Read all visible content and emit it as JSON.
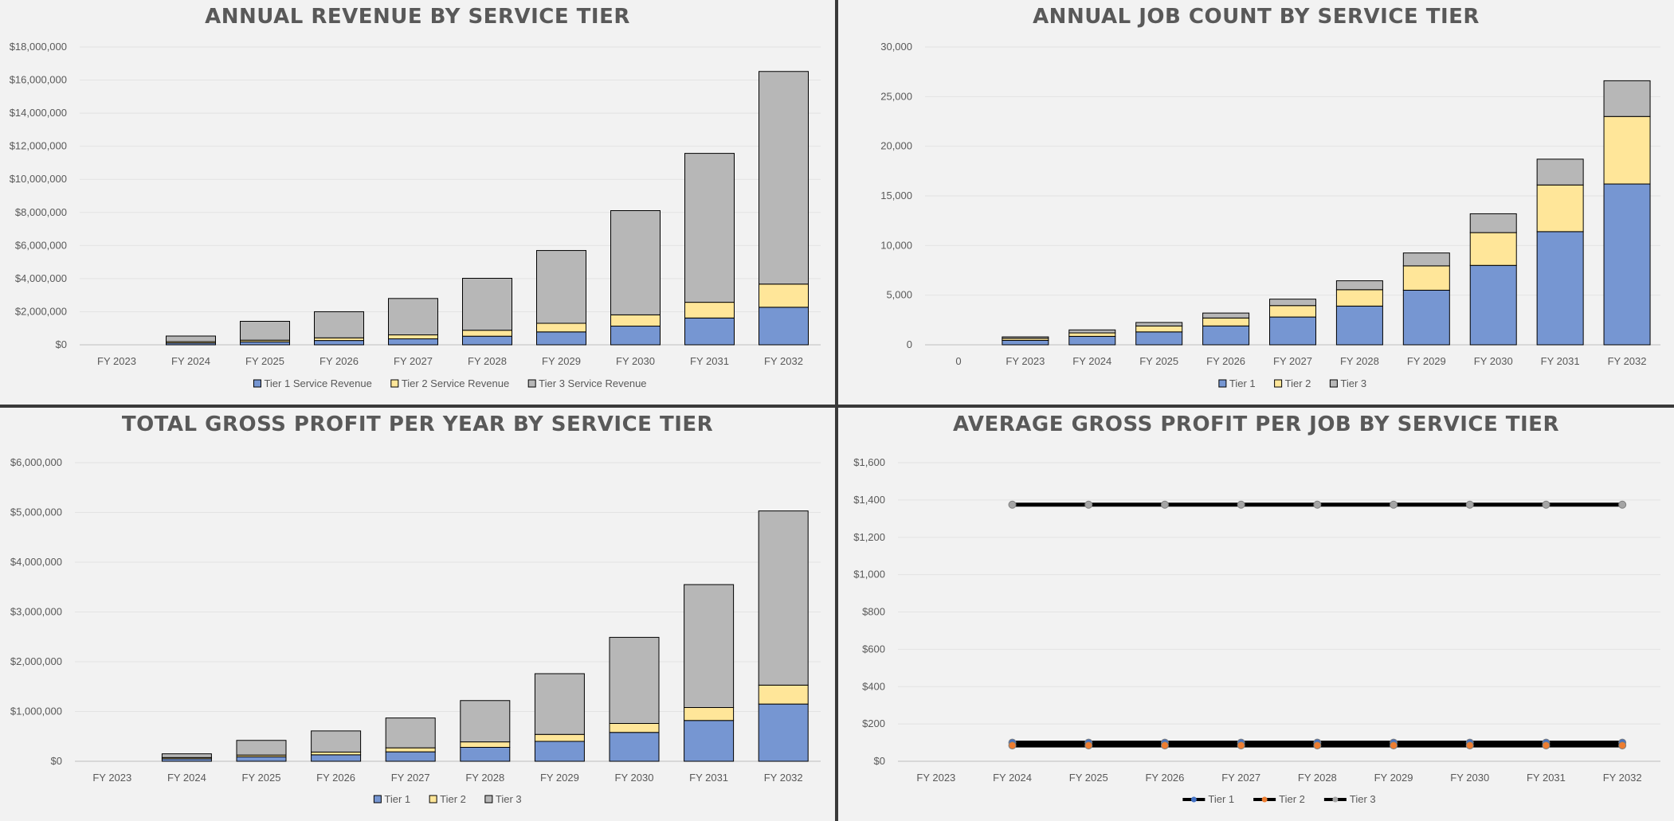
{
  "chart_data": [
    {
      "type": "bar",
      "stacked": true,
      "title": "ANNUAL REVENUE BY SERVICE TIER",
      "categories": [
        "FY 2023",
        "FY 2024",
        "FY 2025",
        "FY 2026",
        "FY 2027",
        "FY 2028",
        "FY 2029",
        "FY 2030",
        "FY 2031",
        "FY 2032"
      ],
      "series": [
        {
          "name": "Tier 1 Service Revenue",
          "color": "#7696d2",
          "values": [
            0,
            110000,
            180000,
            260000,
            360000,
            520000,
            780000,
            1130000,
            1620000,
            2270000
          ]
        },
        {
          "name": "Tier 2 Service Revenue",
          "color": "#ffe699",
          "values": [
            0,
            80000,
            100000,
            160000,
            240000,
            360000,
            520000,
            680000,
            950000,
            1400000
          ]
        },
        {
          "name": "Tier 3 Service Revenue",
          "color": "#b7b7b7",
          "values": [
            0,
            340000,
            1140000,
            1580000,
            2200000,
            3140000,
            4400000,
            6300000,
            9000000,
            12850000
          ]
        }
      ],
      "yticks": [
        "$0",
        "$2,000,000",
        "$4,000,000",
        "$6,000,000",
        "$8,000,000",
        "$10,000,000",
        "$12,000,000",
        "$14,000,000",
        "$16,000,000",
        "$18,000,000"
      ],
      "ylim": [
        0,
        18000000
      ],
      "grid": true,
      "legend": "bottom"
    },
    {
      "type": "bar",
      "stacked": true,
      "title": "ANNUAL JOB COUNT BY SERVICE TIER",
      "categories": [
        "0",
        "FY 2023",
        "FY 2024",
        "FY 2025",
        "FY 2026",
        "FY 2027",
        "FY 2028",
        "FY 2029",
        "FY 2030",
        "FY 2031",
        "FY 2032"
      ],
      "series": [
        {
          "name": "Tier 1",
          "color": "#7696d2",
          "values": [
            0,
            450,
            850,
            1300,
            1900,
            2800,
            3900,
            5500,
            8000,
            11400,
            16200
          ]
        },
        {
          "name": "Tier 2",
          "color": "#ffe699",
          "values": [
            0,
            200,
            350,
            600,
            800,
            1150,
            1650,
            2450,
            3300,
            4700,
            6800
          ]
        },
        {
          "name": "Tier 3",
          "color": "#b7b7b7",
          "values": [
            0,
            150,
            300,
            350,
            500,
            650,
            900,
            1300,
            1900,
            2600,
            3600
          ]
        }
      ],
      "yticks": [
        "0",
        "5,000",
        "10,000",
        "15,000",
        "20,000",
        "25,000",
        "30,000"
      ],
      "ylim": [
        0,
        30000
      ],
      "grid": true,
      "legend": "bottom"
    },
    {
      "type": "bar",
      "stacked": true,
      "title": "TOTAL GROSS PROFIT PER YEAR BY SERVICE TIER",
      "categories": [
        "FY 2023",
        "FY 2024",
        "FY 2025",
        "FY 2026",
        "FY 2027",
        "FY 2028",
        "FY 2029",
        "FY 2030",
        "FY 2031",
        "FY 2032"
      ],
      "series": [
        {
          "name": "Tier 1",
          "color": "#7696d2",
          "values": [
            0,
            50000,
            90000,
            130000,
            190000,
            280000,
            400000,
            580000,
            820000,
            1150000
          ]
        },
        {
          "name": "Tier 2",
          "color": "#ffe699",
          "values": [
            0,
            25000,
            35000,
            55000,
            80000,
            110000,
            140000,
            180000,
            260000,
            380000
          ]
        },
        {
          "name": "Tier 3",
          "color": "#b7b7b7",
          "values": [
            0,
            75000,
            295000,
            425000,
            600000,
            830000,
            1220000,
            1730000,
            2470000,
            3500000
          ]
        }
      ],
      "yticks": [
        "$0",
        "$1,000,000",
        "$2,000,000",
        "$3,000,000",
        "$4,000,000",
        "$5,000,000",
        "$6,000,000"
      ],
      "ylim": [
        0,
        6000000
      ],
      "grid": true,
      "legend": "bottom"
    },
    {
      "type": "line",
      "title": "AVERAGE GROSS PROFIT PER JOB BY SERVICE TIER",
      "categories": [
        "FY 2023",
        "FY 2024",
        "FY 2025",
        "FY 2026",
        "FY 2027",
        "FY 2028",
        "FY 2029",
        "FY 2030",
        "FY 2031",
        "FY 2032"
      ],
      "series": [
        {
          "name": "Tier 1",
          "color": "#4472c4",
          "values": [
            null,
            100,
            100,
            100,
            100,
            100,
            100,
            100,
            100,
            100
          ]
        },
        {
          "name": "Tier 2",
          "color": "#ed7d31",
          "values": [
            null,
            85,
            85,
            85,
            85,
            85,
            85,
            85,
            85,
            85
          ]
        },
        {
          "name": "Tier 3",
          "color": "#a5a5a5",
          "values": [
            null,
            1375,
            1375,
            1375,
            1375,
            1375,
            1375,
            1375,
            1375,
            1375
          ]
        }
      ],
      "yticks": [
        "$0",
        "$200",
        "$400",
        "$600",
        "$800",
        "$1,000",
        "$1,200",
        "$1,400",
        "$1,600"
      ],
      "ylim": [
        0,
        1600
      ],
      "grid": true,
      "legend": "bottom"
    }
  ]
}
